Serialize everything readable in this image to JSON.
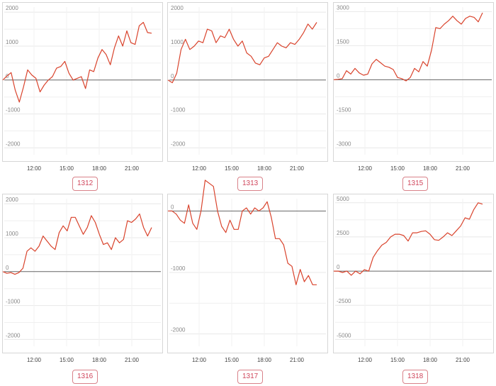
{
  "chart_data": [
    {
      "type": "line",
      "label": "1312",
      "x_ticks": [
        "12:00",
        "15:00",
        "18:00",
        "21:00"
      ],
      "y_ticks": [
        2000,
        1000,
        0,
        -1000,
        -2000
      ],
      "ylim": [
        -2200,
        2150
      ],
      "series": [
        {
          "values": [
            0,
            120,
            220,
            -300,
            -650,
            -200,
            300,
            150,
            50,
            -350,
            -150,
            0,
            100,
            350,
            400,
            550,
            200,
            0,
            50,
            100,
            -250,
            300,
            250,
            650,
            900,
            750,
            450,
            950,
            1300,
            1000,
            1450,
            1100,
            1050,
            1600,
            1700,
            1400,
            1380
          ]
        }
      ],
      "color": "#d9432c",
      "grid": true
    },
    {
      "type": "line",
      "label": "1313",
      "x_ticks": [
        "12:00",
        "15:00",
        "18:00",
        "21:00"
      ],
      "y_ticks": [
        2000,
        1000,
        0,
        -1000,
        -2000
      ],
      "ylim": [
        -2200,
        2150
      ],
      "series": [
        {
          "values": [
            0,
            -80,
            200,
            900,
            1200,
            900,
            1000,
            1150,
            1100,
            1500,
            1450,
            1100,
            1300,
            1250,
            1500,
            1200,
            1000,
            1150,
            800,
            700,
            500,
            450,
            650,
            700,
            900,
            1100,
            1000,
            950,
            1100,
            1050,
            1200,
            1400,
            1650,
            1500,
            1700
          ]
        }
      ],
      "color": "#d9432c",
      "grid": true
    },
    {
      "type": "line",
      "label": "1315",
      "x_ticks": [
        "12:00",
        "15:00",
        "18:00",
        "21:00"
      ],
      "y_ticks": [
        3000,
        1500,
        0,
        -1500,
        -3000
      ],
      "ylim": [
        -3300,
        3200
      ],
      "series": [
        {
          "values": [
            0,
            20,
            50,
            400,
            250,
            500,
            300,
            200,
            250,
            700,
            900,
            750,
            600,
            550,
            450,
            100,
            50,
            -50,
            100,
            500,
            350,
            800,
            600,
            1300,
            2300,
            2250,
            2450,
            2600,
            2800,
            2600,
            2450,
            2700,
            2800,
            2750,
            2550,
            2950
          ]
        }
      ],
      "color": "#d9432c",
      "grid": true
    },
    {
      "type": "line",
      "label": "1316",
      "x_ticks": [
        "12:00",
        "15:00",
        "18:00",
        "21:00"
      ],
      "y_ticks": [
        2000,
        1000,
        0,
        -1000,
        -2000
      ],
      "ylim": [
        -2200,
        2150
      ],
      "series": [
        {
          "values": [
            0,
            -50,
            -30,
            -80,
            -30,
            100,
            600,
            700,
            600,
            750,
            1050,
            900,
            750,
            650,
            1150,
            1350,
            1200,
            1600,
            1600,
            1350,
            1100,
            1300,
            1650,
            1450,
            1100,
            800,
            850,
            650,
            1000,
            850,
            950,
            1500,
            1450,
            1550,
            1700,
            1300,
            1050,
            1300
          ]
        }
      ],
      "color": "#d9432c",
      "grid": true
    },
    {
      "type": "line",
      "label": "1317",
      "x_ticks": [
        "12:00",
        "15:00",
        "18:00",
        "21:00"
      ],
      "y_ticks": [
        0,
        -1000,
        -2000
      ],
      "ylim": [
        -2200,
        200
      ],
      "series": [
        {
          "values": [
            0,
            0,
            -50,
            -150,
            -200,
            100,
            -200,
            -300,
            0,
            500,
            450,
            400,
            0,
            -250,
            -350,
            -150,
            -300,
            -300,
            0,
            50,
            -50,
            50,
            0,
            50,
            150,
            -100,
            -450,
            -450,
            -550,
            -850,
            -900,
            -1200,
            -950,
            -1150,
            -1050,
            -1200,
            -1200
          ]
        }
      ],
      "color": "#d9432c",
      "grid": true
    },
    {
      "type": "line",
      "label": "1318",
      "x_ticks": [
        "12:00",
        "15:00",
        "18:00",
        "21:00"
      ],
      "y_ticks": [
        5000,
        2500,
        0,
        -2500,
        -5000
      ],
      "ylim": [
        -5500,
        5300
      ],
      "series": [
        {
          "values": [
            0,
            0,
            -100,
            0,
            -300,
            0,
            -200,
            100,
            0,
            1000,
            1500,
            1900,
            2100,
            2500,
            2700,
            2700,
            2600,
            2200,
            2800,
            2800,
            2900,
            2950,
            2700,
            2300,
            2250,
            2500,
            2800,
            2600,
            2950,
            3300,
            3900,
            3800,
            4500,
            5000,
            4900
          ]
        }
      ],
      "color": "#d9432c",
      "grid": true
    }
  ]
}
